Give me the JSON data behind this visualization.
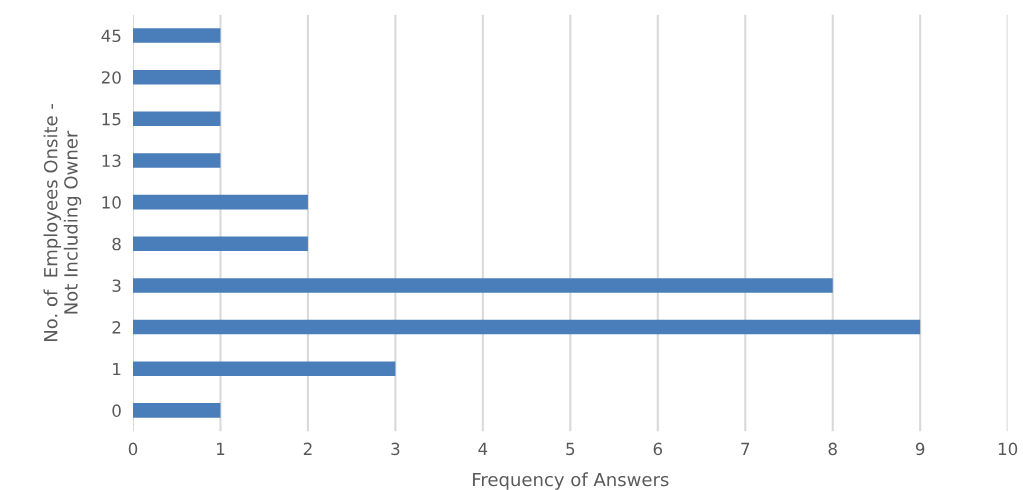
{
  "chart_data": {
    "type": "bar",
    "orientation": "horizontal",
    "categories": [
      "45",
      "20",
      "15",
      "13",
      "10",
      "8",
      "3",
      "2",
      "1",
      "0"
    ],
    "values": [
      1,
      1,
      1,
      1,
      2,
      2,
      8,
      9,
      3,
      1
    ],
    "color": "#4a7ebb",
    "xlabel": "Frequency of Answers",
    "ylabel": "No. of  Employees Onsite -\nNot Including Owner",
    "xlim": [
      0,
      10
    ],
    "xticks": [
      0,
      1,
      2,
      3,
      4,
      5,
      6,
      7,
      8,
      9,
      10
    ],
    "grid": "x",
    "legend": false
  }
}
